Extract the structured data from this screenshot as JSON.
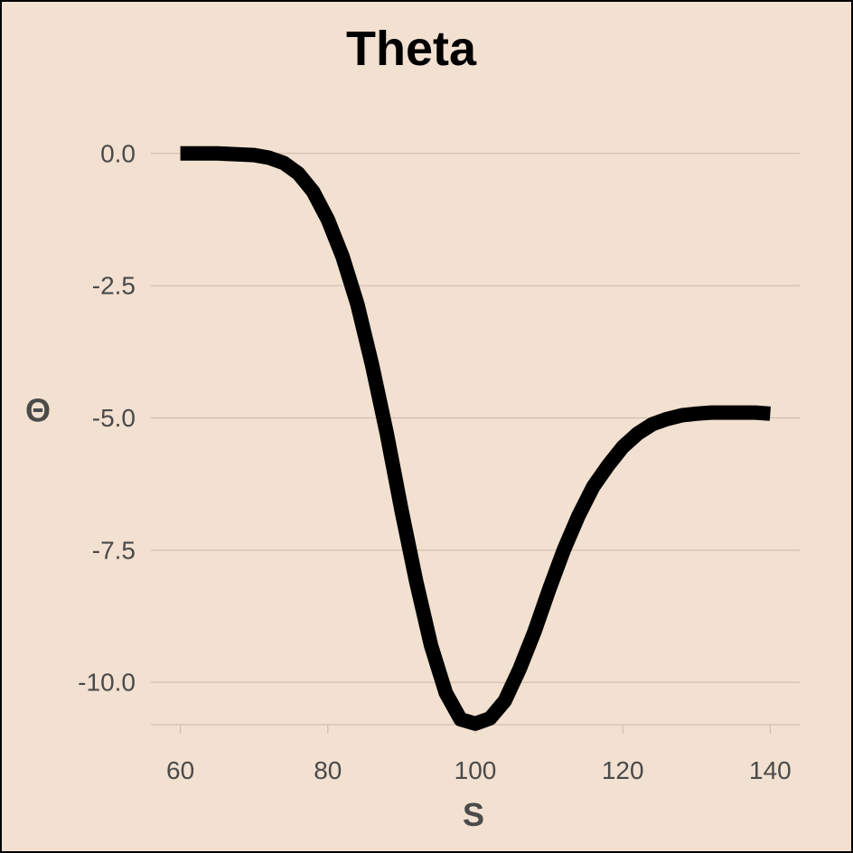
{
  "chart_data": {
    "type": "line",
    "title": "Theta",
    "xlabel": "S",
    "ylabel": "Θ",
    "xlim": [
      56,
      144
    ],
    "ylim": [
      -10.8,
      1.5
    ],
    "x_ticks": [
      60,
      80,
      100,
      120,
      140
    ],
    "x_tick_labels": [
      "60",
      "80",
      "100",
      "120",
      "140"
    ],
    "y_ticks": [
      0,
      -2.5,
      -5,
      -7.5,
      -10
    ],
    "y_tick_labels": [
      "0.0",
      "-2.5",
      "-5.0",
      "-7.5",
      "-10.0"
    ],
    "grid": true,
    "colors": {
      "background": "#f2e0d0",
      "line": "#000000",
      "grid": "#cdb8a8",
      "text": "#4a4a4a"
    },
    "series": [
      {
        "x": [
          60,
          65,
          70,
          72,
          74,
          76,
          78,
          80,
          82,
          84,
          86,
          88,
          90,
          92,
          94,
          96,
          98,
          100,
          102,
          104,
          106,
          108,
          110,
          112,
          114,
          116,
          118,
          120,
          122,
          124,
          126,
          128,
          130,
          132,
          134,
          136,
          138,
          140
        ],
        "y": [
          0.0,
          0.0,
          -0.03,
          -0.08,
          -0.18,
          -0.38,
          -0.72,
          -1.25,
          -1.95,
          -2.85,
          -4.0,
          -5.3,
          -6.75,
          -8.1,
          -9.3,
          -10.2,
          -10.7,
          -10.78,
          -10.68,
          -10.35,
          -9.75,
          -9.05,
          -8.25,
          -7.5,
          -6.85,
          -6.3,
          -5.9,
          -5.55,
          -5.3,
          -5.12,
          -5.02,
          -4.95,
          -4.92,
          -4.9,
          -4.9,
          -4.9,
          -4.9,
          -4.92
        ]
      }
    ]
  }
}
